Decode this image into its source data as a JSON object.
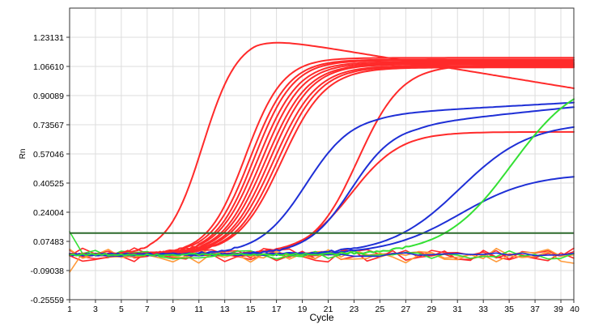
{
  "chart_data": {
    "type": "line",
    "xlabel": "Cycle",
    "ylabel": "Rn",
    "xlim": [
      1,
      40
    ],
    "ylim": [
      -0.25559,
      1.39652
    ],
    "x_ticks": [
      1,
      3,
      5,
      7,
      9,
      11,
      13,
      15,
      17,
      19,
      21,
      23,
      25,
      27,
      29,
      31,
      33,
      35,
      37,
      39,
      40
    ],
    "y_ticks": [
      -0.25559,
      -0.09038,
      0.07483,
      0.24004,
      0.40525,
      0.57046,
      0.73567,
      0.90089,
      1.0661,
      1.23131
    ],
    "y_tick_labels": [
      "-0.25559",
      "-0.09038",
      "0.07483",
      "0.24004",
      "0.40525",
      "0.57046",
      "0.73567",
      "0.90089",
      "1.06610",
      "1.23131"
    ],
    "grid": true,
    "threshold": {
      "y": 0.122,
      "color": "#2d6a2d"
    },
    "colors": {
      "red": "#ff2a2a",
      "blue": "#1e2fd6",
      "green": "#33e033",
      "orange": "#ff9a3a",
      "border": "#333333",
      "grid": "#dddddd"
    },
    "series": [
      {
        "color": "#ff2a2a",
        "kind": "sigmoid",
        "baseline": 0.0,
        "plateau": 1.238,
        "midpoint": 11.3,
        "slope": 1.35,
        "tail": -0.012
      },
      {
        "color": "#ff2a2a",
        "kind": "sigmoid",
        "baseline": 0.0,
        "plateau": 1.115,
        "midpoint": 14.6,
        "slope": 1.45
      },
      {
        "color": "#ff2a2a",
        "kind": "sigmoid",
        "baseline": 0.0,
        "plateau": 1.105,
        "midpoint": 15.0,
        "slope": 1.5
      },
      {
        "color": "#ff2a2a",
        "kind": "sigmoid",
        "baseline": 0.0,
        "plateau": 1.1,
        "midpoint": 15.3,
        "slope": 1.5
      },
      {
        "color": "#ff2a2a",
        "kind": "sigmoid",
        "baseline": 0.0,
        "plateau": 1.092,
        "midpoint": 15.6,
        "slope": 1.55
      },
      {
        "color": "#ff2a2a",
        "kind": "sigmoid",
        "baseline": 0.0,
        "plateau": 1.085,
        "midpoint": 15.9,
        "slope": 1.55
      },
      {
        "color": "#ff2a2a",
        "kind": "sigmoid",
        "baseline": 0.0,
        "plateau": 1.08,
        "midpoint": 16.2,
        "slope": 1.6
      },
      {
        "color": "#ff2a2a",
        "kind": "sigmoid",
        "baseline": 0.0,
        "plateau": 1.078,
        "midpoint": 16.5,
        "slope": 1.6
      },
      {
        "color": "#ff2a2a",
        "kind": "sigmoid",
        "baseline": 0.0,
        "plateau": 1.07,
        "midpoint": 16.8,
        "slope": 1.65
      },
      {
        "color": "#ff2a2a",
        "kind": "sigmoid",
        "baseline": 0.0,
        "plateau": 1.065,
        "midpoint": 17.1,
        "slope": 1.65
      },
      {
        "color": "#ff2a2a",
        "kind": "sigmoid",
        "baseline": 0.0,
        "plateau": 1.06,
        "midpoint": 17.4,
        "slope": 1.7
      },
      {
        "color": "#ff2a2a",
        "kind": "sigmoid",
        "baseline": 0.0,
        "plateau": 1.075,
        "midpoint": 23.3,
        "slope": 1.7
      },
      {
        "color": "#ff2a2a",
        "kind": "sigmoid",
        "baseline": 0.0,
        "plateau": 0.695,
        "midpoint": 22.8,
        "slope": 1.9
      },
      {
        "color": "#1e2fd6",
        "kind": "sigmoid",
        "baseline": 0.0,
        "plateau": 0.8,
        "midpoint": 19.3,
        "slope": 1.8,
        "tail": 0.004
      },
      {
        "color": "#1e2fd6",
        "kind": "sigmoid",
        "baseline": 0.0,
        "plateau": 0.745,
        "midpoint": 22.8,
        "slope": 1.7,
        "tail": 0.0075
      },
      {
        "color": "#1e2fd6",
        "kind": "sigmoid",
        "baseline": 0.0,
        "plateau": 0.75,
        "midpoint": 31.2,
        "slope": 2.7
      },
      {
        "color": "#1e2fd6",
        "kind": "sigmoid",
        "baseline": 0.0,
        "plateau": 0.46,
        "midpoint": 31.2,
        "slope": 2.8
      },
      {
        "color": "#33e033",
        "kind": "sigmoid",
        "baseline": 0.0,
        "plateau": 1.02,
        "midpoint": 35.2,
        "slope": 2.6
      },
      {
        "color": "#ff2a2a",
        "kind": "noise",
        "level": 0.01,
        "amp": 0.03,
        "seed": 3
      },
      {
        "color": "#ff2a2a",
        "kind": "noise",
        "level": -0.01,
        "amp": 0.035,
        "seed": 7
      },
      {
        "color": "#ff2a2a",
        "kind": "noise",
        "level": 0.0,
        "amp": 0.03,
        "seed": 11
      },
      {
        "color": "#ff9a3a",
        "kind": "noise",
        "level": 0.005,
        "amp": 0.03,
        "seed": 17
      },
      {
        "color": "#ff9a3a",
        "kind": "noise",
        "level": -0.015,
        "amp": 0.035,
        "seed": 23
      },
      {
        "color": "#33e033",
        "kind": "noise",
        "level": 0.0,
        "amp": 0.025,
        "seed": 29
      },
      {
        "color": "#1e2fd6",
        "kind": "noise",
        "level": 0.0,
        "amp": 0.01,
        "seed": 31
      }
    ]
  }
}
